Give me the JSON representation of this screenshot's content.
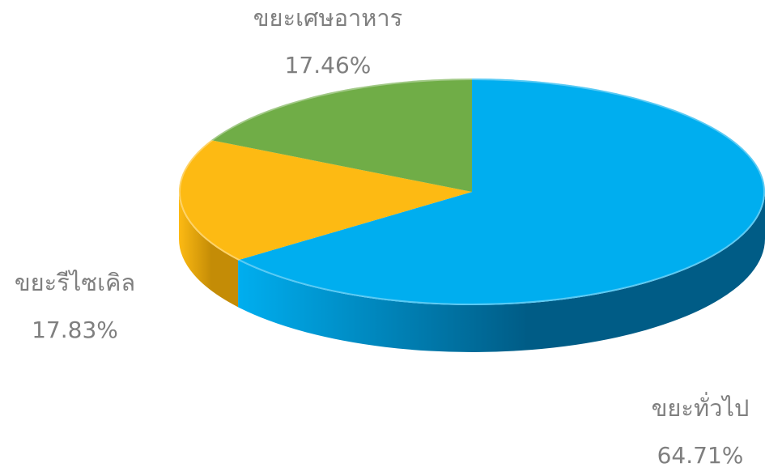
{
  "chart_data": {
    "type": "pie",
    "style": "3d",
    "title": "",
    "slices": [
      {
        "label": "ขยะทั่วไป",
        "value": 64.71,
        "value_label": "64.71%",
        "color": "#00AEEF",
        "side_color": "#005C86"
      },
      {
        "label": "ขยะรีไซเคิล",
        "value": 17.83,
        "value_label": "17.83%",
        "color": "#FDBA13",
        "side_color": "#C48C06"
      },
      {
        "label": "ขยะเศษอาหาร",
        "value": 17.46,
        "value_label": "17.46%",
        "color": "#70AD47",
        "side_color": "#4E7C30"
      }
    ],
    "legend": "none",
    "data_labels": "outside"
  }
}
